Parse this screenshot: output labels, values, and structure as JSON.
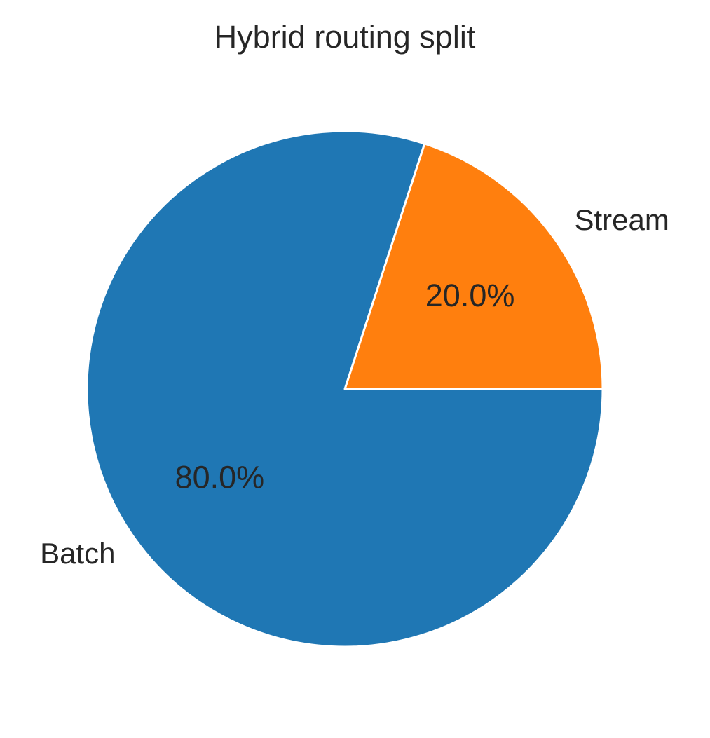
{
  "chart_data": {
    "type": "pie",
    "title": "Hybrid routing split",
    "slices": [
      {
        "label": "Stream",
        "value": 20.0,
        "pct_label": "20.0%",
        "color": "#ff7f0e"
      },
      {
        "label": "Batch",
        "value": 80.0,
        "pct_label": "80.0%",
        "color": "#1f77b4"
      }
    ],
    "start_angle_deg": 0,
    "direction": "counterclockwise",
    "edge_color": "#ffffff"
  }
}
